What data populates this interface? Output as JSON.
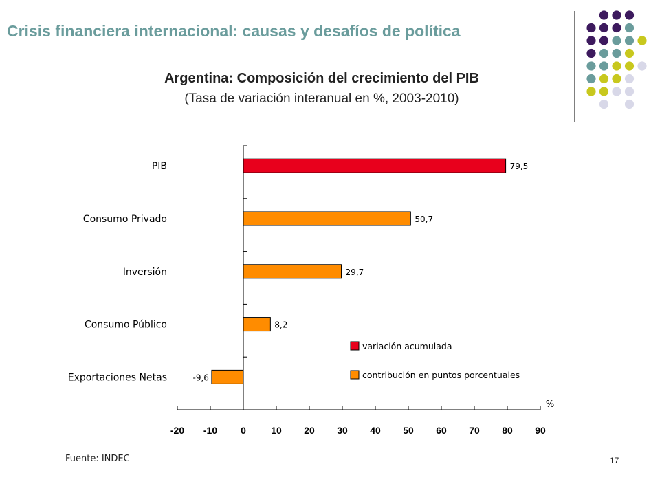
{
  "slide": {
    "header_title": "Crisis financiera internacional: causas y desafíos de política",
    "source": "Fuente: INDEC",
    "page_number": "17",
    "dot_colors": [
      "#3d1a5e",
      "#6a9c9c",
      "#c8c81e",
      "#d8d8e8"
    ]
  },
  "chart_data": {
    "type": "bar",
    "orientation": "horizontal",
    "title": "Argentina: Composición del crecimiento del PIB",
    "subtitle": "(Tasa de variación interanual en %, 2003-2010)",
    "unit_label": "%",
    "categories": [
      "PIB",
      "Consumo Privado",
      "Inversión",
      "Consumo Público",
      "Exportaciones Netas"
    ],
    "values": [
      79.5,
      50.7,
      29.7,
      8.2,
      -9.6
    ],
    "value_labels": [
      "79,5",
      "50,7",
      "29,7",
      "8,2",
      "-9,6"
    ],
    "series_index": [
      0,
      1,
      1,
      1,
      1
    ],
    "series": [
      {
        "name": "variación acumulada",
        "color": "#e8001c"
      },
      {
        "name": "contribución en puntos porcentuales",
        "color": "#ff8c00"
      }
    ],
    "xlim": [
      -20,
      90
    ],
    "xticks": [
      "-20",
      "-10",
      "0",
      "10",
      "20",
      "30",
      "40",
      "50",
      "60",
      "70",
      "80",
      "90"
    ],
    "grid": false,
    "legend_position": "lower-right"
  }
}
